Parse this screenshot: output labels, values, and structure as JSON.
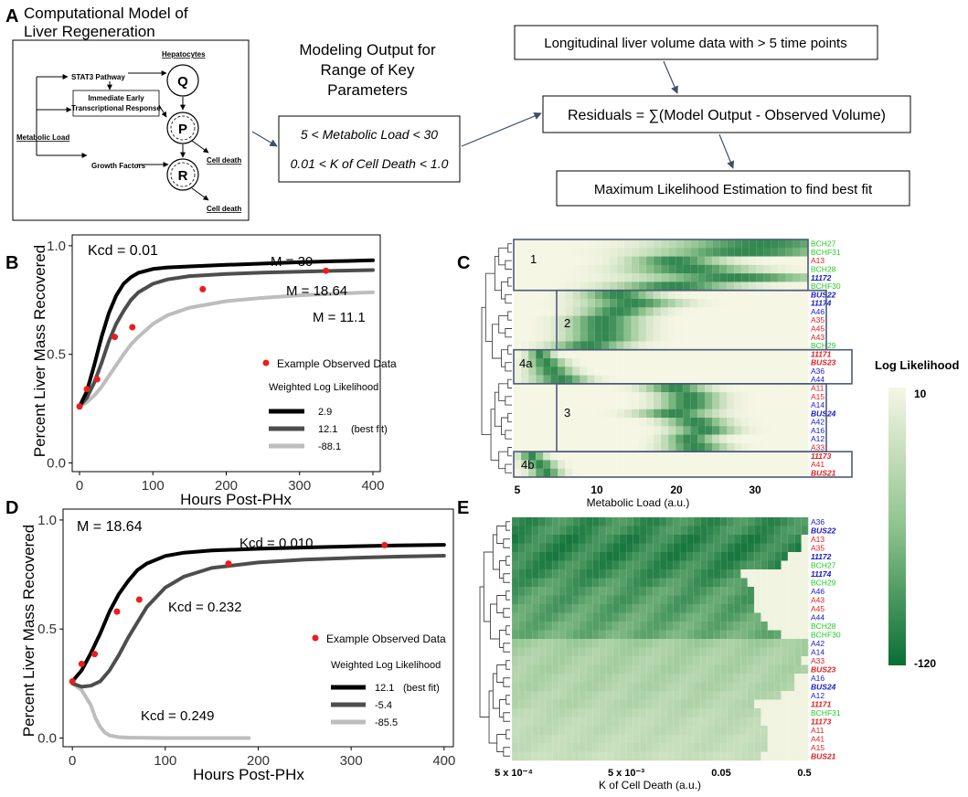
{
  "panel_letters": {
    "A": "A",
    "B": "B",
    "C": "C",
    "D": "D",
    "E": "E"
  },
  "panelA": {
    "model_title_1": "Computational Model of",
    "model_title_2": "Liver Regeneration",
    "hepatocytes": "Hepatocytes",
    "stat3": "STAT3 Pathway",
    "ieg_1": "Immediate Early",
    "ieg_2": "Transcriptional Response",
    "metabolic_load": "Metabolic Load",
    "growth_factors": "Growth Factors",
    "node_q": "Q",
    "node_p": "P",
    "node_r": "R",
    "cell_death_1": "Cell death",
    "cell_death_2": "Cell death",
    "modeling_1": "Modeling Output for",
    "modeling_2": "Range of Key",
    "modeling_3": "Parameters",
    "param_1": "5 < Metabolic Load < 30",
    "param_2": "0.01 < K of Cell Death < 1.0",
    "longitudinal": "Longitudinal liver volume data with > 5 time points",
    "residuals": "Residuals = ∑(Model Output - Observed Volume)",
    "mle": "Maximum Likelihood Estimation to find best fit"
  },
  "chart_data": [
    {
      "panel": "B",
      "type": "line",
      "xlabel": "Hours Post-PHx",
      "ylabel": "Percent Liver Mass Recovered",
      "xlim": [
        -10,
        410
      ],
      "ylim": [
        -0.04,
        1.05
      ],
      "xticks": [
        "0",
        "100",
        "200",
        "300",
        "400"
      ],
      "yticks": [
        "0.0",
        "0.5",
        "1.0"
      ],
      "corner_label": "Kcd = 0.01",
      "series": [
        {
          "name": "M = 30",
          "ll": "2.9",
          "color": "#000000",
          "x": [
            0,
            10,
            20,
            30,
            40,
            50,
            60,
            70,
            80,
            100,
            120,
            150,
            200,
            250,
            300,
            350,
            400
          ],
          "y": [
            0.26,
            0.33,
            0.45,
            0.58,
            0.69,
            0.77,
            0.825,
            0.855,
            0.875,
            0.893,
            0.9,
            0.905,
            0.912,
            0.918,
            0.924,
            0.929,
            0.933
          ]
        },
        {
          "name": "M = 18.64",
          "ll": "12.1",
          "color": "#4d4d4d",
          "x": [
            0,
            10,
            20,
            30,
            40,
            50,
            60,
            70,
            80,
            100,
            120,
            150,
            200,
            250,
            300,
            350,
            400
          ],
          "y": [
            0.26,
            0.3,
            0.37,
            0.46,
            0.56,
            0.64,
            0.7,
            0.75,
            0.785,
            0.825,
            0.845,
            0.86,
            0.87,
            0.876,
            0.881,
            0.885,
            0.888
          ]
        },
        {
          "name": "M = 11.1",
          "ll": "-88.1",
          "color": "#bdbdbd",
          "x": [
            0,
            10,
            20,
            30,
            40,
            50,
            60,
            70,
            80,
            100,
            120,
            150,
            200,
            250,
            300,
            350,
            400
          ],
          "y": [
            0.26,
            0.28,
            0.31,
            0.35,
            0.4,
            0.45,
            0.5,
            0.545,
            0.58,
            0.64,
            0.68,
            0.715,
            0.745,
            0.76,
            0.772,
            0.78,
            0.786
          ]
        }
      ],
      "observed": {
        "x": [
          0,
          10,
          24,
          48,
          72,
          168,
          336
        ],
        "y": [
          0.26,
          0.34,
          0.385,
          0.58,
          0.625,
          0.8,
          0.885
        ]
      },
      "legend_observed": "Example Observed Data",
      "legend_title": "Weighted Log Likelihood",
      "best_fit_note": "(best fit)"
    },
    {
      "panel": "D",
      "type": "line",
      "xlabel": "Hours Post-PHx",
      "ylabel": "Percent Liver Mass Recovered",
      "xlim": [
        -10,
        410
      ],
      "ylim": [
        -0.04,
        1.05
      ],
      "xticks": [
        "0",
        "100",
        "200",
        "300",
        "400"
      ],
      "yticks": [
        "0.0",
        "0.5",
        "1.0"
      ],
      "corner_label": "M = 18.64",
      "series": [
        {
          "name": "Kcd = 0.010",
          "ll": "12.1",
          "color": "#000000",
          "x": [
            0,
            10,
            20,
            30,
            40,
            50,
            60,
            70,
            80,
            100,
            120,
            150,
            200,
            250,
            300,
            350,
            400
          ],
          "y": [
            0.26,
            0.31,
            0.39,
            0.48,
            0.58,
            0.66,
            0.72,
            0.77,
            0.8,
            0.835,
            0.85,
            0.86,
            0.868,
            0.874,
            0.879,
            0.883,
            0.886
          ]
        },
        {
          "name": "Kcd = 0.232",
          "ll": "-5.4",
          "color": "#4d4d4d",
          "x": [
            0,
            10,
            20,
            30,
            40,
            50,
            60,
            70,
            80,
            100,
            120,
            150,
            200,
            250,
            300,
            350,
            400
          ],
          "y": [
            0.25,
            0.235,
            0.24,
            0.26,
            0.31,
            0.38,
            0.46,
            0.53,
            0.6,
            0.69,
            0.74,
            0.78,
            0.805,
            0.818,
            0.826,
            0.832,
            0.836
          ]
        },
        {
          "name": "Kcd = 0.249",
          "ll": "-85.5",
          "color": "#bdbdbd",
          "x": [
            0,
            10,
            20,
            25,
            30,
            35,
            40,
            50,
            60,
            80,
            100,
            150,
            190
          ],
          "y": [
            0.25,
            0.22,
            0.15,
            0.09,
            0.05,
            0.025,
            0.012,
            0.004,
            0.002,
            0.001,
            0.0,
            0.0,
            0.0
          ]
        }
      ],
      "observed": {
        "x": [
          0,
          10,
          24,
          48,
          72,
          168,
          336
        ],
        "y": [
          0.26,
          0.34,
          0.385,
          0.58,
          0.635,
          0.8,
          0.885
        ]
      },
      "legend_observed": "Example Observed Data",
      "legend_title": "Weighted Log Likelihood",
      "best_fit_note": "(best fit)"
    },
    {
      "panel": "C",
      "type": "heatmap",
      "xlabel": "Metabolic Load (a.u.)",
      "xticks": [
        "5",
        "10",
        "20",
        "30"
      ],
      "rows": [
        {
          "label": "BCH27",
          "color": "#22cc22",
          "bold": false
        },
        {
          "label": "BCHF31",
          "color": "#22cc22",
          "bold": false
        },
        {
          "label": "A13",
          "color": "#e02020",
          "bold": false
        },
        {
          "label": "BCH28",
          "color": "#22cc22",
          "bold": false
        },
        {
          "label": "11172",
          "color": "#1a1acc",
          "bold": true
        },
        {
          "label": "BCHF30",
          "color": "#22cc22",
          "bold": false
        },
        {
          "label": "BUS22",
          "color": "#1a1acc",
          "bold": true
        },
        {
          "label": "11174",
          "color": "#1a1acc",
          "bold": true
        },
        {
          "label": "A46",
          "color": "#1a1acc",
          "bold": false
        },
        {
          "label": "A35",
          "color": "#e02020",
          "bold": false
        },
        {
          "label": "A45",
          "color": "#e02020",
          "bold": false
        },
        {
          "label": "A43",
          "color": "#e02020",
          "bold": false
        },
        {
          "label": "BCH29",
          "color": "#22cc22",
          "bold": false
        },
        {
          "label": "11171",
          "color": "#e02020",
          "bold": true
        },
        {
          "label": "BUS23",
          "color": "#e02020",
          "bold": true
        },
        {
          "label": "A36",
          "color": "#1a1acc",
          "bold": false
        },
        {
          "label": "A44",
          "color": "#1a1acc",
          "bold": false
        },
        {
          "label": "A11",
          "color": "#e02020",
          "bold": false
        },
        {
          "label": "A15",
          "color": "#e02020",
          "bold": false
        },
        {
          "label": "A14",
          "color": "#1a1acc",
          "bold": false
        },
        {
          "label": "BUS24",
          "color": "#1a1acc",
          "bold": true
        },
        {
          "label": "A42",
          "color": "#1a1acc",
          "bold": false
        },
        {
          "label": "A16",
          "color": "#1a1acc",
          "bold": false
        },
        {
          "label": "A12",
          "color": "#1a1acc",
          "bold": false
        },
        {
          "label": "A33",
          "color": "#e02020",
          "bold": false
        },
        {
          "label": "11173",
          "color": "#e02020",
          "bold": true
        },
        {
          "label": "A41",
          "color": "#e02020",
          "bold": false
        },
        {
          "label": "BUS21",
          "color": "#e02020",
          "bold": true
        }
      ],
      "peaks": [
        0.85,
        0.8,
        0.55,
        0.6,
        0.75,
        0.55,
        0.35,
        0.4,
        0.35,
        0.3,
        0.3,
        0.3,
        0.25,
        0.08,
        0.1,
        0.12,
        0.15,
        0.55,
        0.6,
        0.6,
        0.55,
        0.62,
        0.65,
        0.6,
        0.62,
        0.05,
        0.08,
        0.1
      ],
      "widths": [
        0.3,
        0.3,
        0.15,
        0.2,
        0.28,
        0.2,
        0.12,
        0.15,
        0.12,
        0.12,
        0.12,
        0.12,
        0.12,
        0.04,
        0.06,
        0.07,
        0.09,
        0.1,
        0.1,
        0.1,
        0.12,
        0.1,
        0.1,
        0.08,
        0.1,
        0.04,
        0.05,
        0.05
      ],
      "clusters": [
        "1",
        "2",
        "4a",
        "3",
        "4b"
      ]
    },
    {
      "panel": "E",
      "type": "heatmap",
      "xlabel": "K of Cell Death (a.u.)",
      "xticks": [
        "5 x 10⁻⁴",
        "5 x 10⁻³",
        "0.05",
        "0.5"
      ],
      "rows": [
        {
          "label": "A36",
          "color": "#1a1acc",
          "bold": false
        },
        {
          "label": "BUS22",
          "color": "#1a1acc",
          "bold": true
        },
        {
          "label": "A13",
          "color": "#e02020",
          "bold": false
        },
        {
          "label": "A35",
          "color": "#e02020",
          "bold": false
        },
        {
          "label": "11172",
          "color": "#1a1acc",
          "bold": true
        },
        {
          "label": "BCH27",
          "color": "#22cc22",
          "bold": false
        },
        {
          "label": "11174",
          "color": "#1a1acc",
          "bold": true
        },
        {
          "label": "BCH29",
          "color": "#22cc22",
          "bold": false
        },
        {
          "label": "A46",
          "color": "#1a1acc",
          "bold": false
        },
        {
          "label": "A43",
          "color": "#e02020",
          "bold": false
        },
        {
          "label": "A45",
          "color": "#e02020",
          "bold": false
        },
        {
          "label": "A44",
          "color": "#1a1acc",
          "bold": false
        },
        {
          "label": "BCH28",
          "color": "#22cc22",
          "bold": false
        },
        {
          "label": "BCHF30",
          "color": "#22cc22",
          "bold": false
        },
        {
          "label": "A42",
          "color": "#1a1acc",
          "bold": false
        },
        {
          "label": "A14",
          "color": "#1a1acc",
          "bold": false
        },
        {
          "label": "A33",
          "color": "#e02020",
          "bold": false
        },
        {
          "label": "BUS23",
          "color": "#e02020",
          "bold": true
        },
        {
          "label": "A16",
          "color": "#1a1acc",
          "bold": false
        },
        {
          "label": "BUS24",
          "color": "#1a1acc",
          "bold": true
        },
        {
          "label": "A12",
          "color": "#1a1acc",
          "bold": false
        },
        {
          "label": "11171",
          "color": "#e02020",
          "bold": true
        },
        {
          "label": "BCHF31",
          "color": "#22cc22",
          "bold": false
        },
        {
          "label": "11173",
          "color": "#e02020",
          "bold": true
        },
        {
          "label": "A11",
          "color": "#e02020",
          "bold": false
        },
        {
          "label": "A41",
          "color": "#e02020",
          "bold": false
        },
        {
          "label": "A15",
          "color": "#e02020",
          "bold": false
        },
        {
          "label": "BUS21",
          "color": "#e02020",
          "bold": true
        }
      ],
      "levels": [
        0.9,
        0.9,
        0.95,
        0.95,
        0.95,
        0.92,
        0.9,
        0.85,
        0.8,
        0.8,
        0.78,
        0.75,
        0.72,
        0.7,
        0.45,
        0.42,
        0.4,
        0.4,
        0.38,
        0.38,
        0.35,
        0.35,
        0.32,
        0.3,
        0.3,
        0.28,
        0.28,
        0.25
      ],
      "cutoffs": [
        1.0,
        1.0,
        0.98,
        0.98,
        0.95,
        0.92,
        0.78,
        0.8,
        0.82,
        0.82,
        0.83,
        0.86,
        0.88,
        0.92,
        1.0,
        1.0,
        0.98,
        1.0,
        0.96,
        0.96,
        0.93,
        0.83,
        0.85,
        0.86,
        0.88,
        0.88,
        0.88,
        0.86
      ]
    }
  ],
  "colorbar": {
    "title": "Log Likelihood",
    "max_label": "10",
    "min_label": "-120",
    "light": "#f6f6e4",
    "dark": "#0a6e34"
  }
}
